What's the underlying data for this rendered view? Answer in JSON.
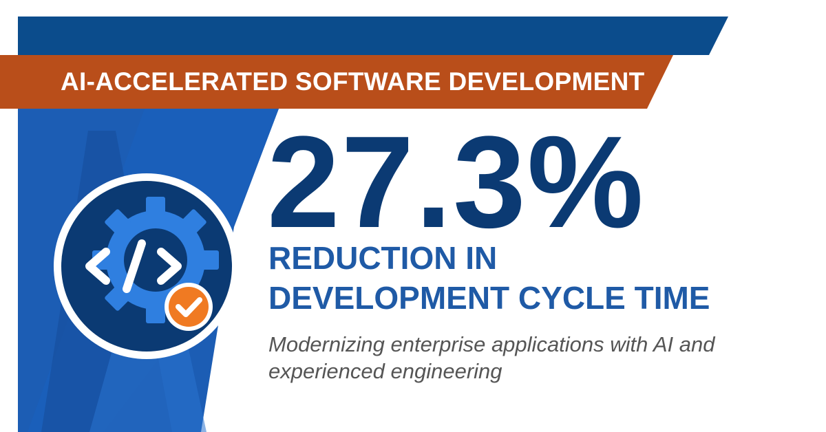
{
  "banner": {
    "text": "AI-ACCELERATED SOFTWARE DEVELOPMENT"
  },
  "stat": {
    "value": "27.3%",
    "label_line1": "REDUCTION IN",
    "label_line2": "DEVELOPMENT CYCLE TIME"
  },
  "subtitle": "Modernizing enterprise applications with AI and experienced engineering",
  "icons": {
    "main": "code-gear-icon",
    "badge": "checkmark-icon"
  },
  "colors": {
    "navy": "#0b3a73",
    "blue": "#1f5aa6",
    "bright_blue": "#2f7fe0",
    "orange_banner": "#b94e1a",
    "orange_badge": "#f07a22",
    "gray_text": "#555555"
  }
}
